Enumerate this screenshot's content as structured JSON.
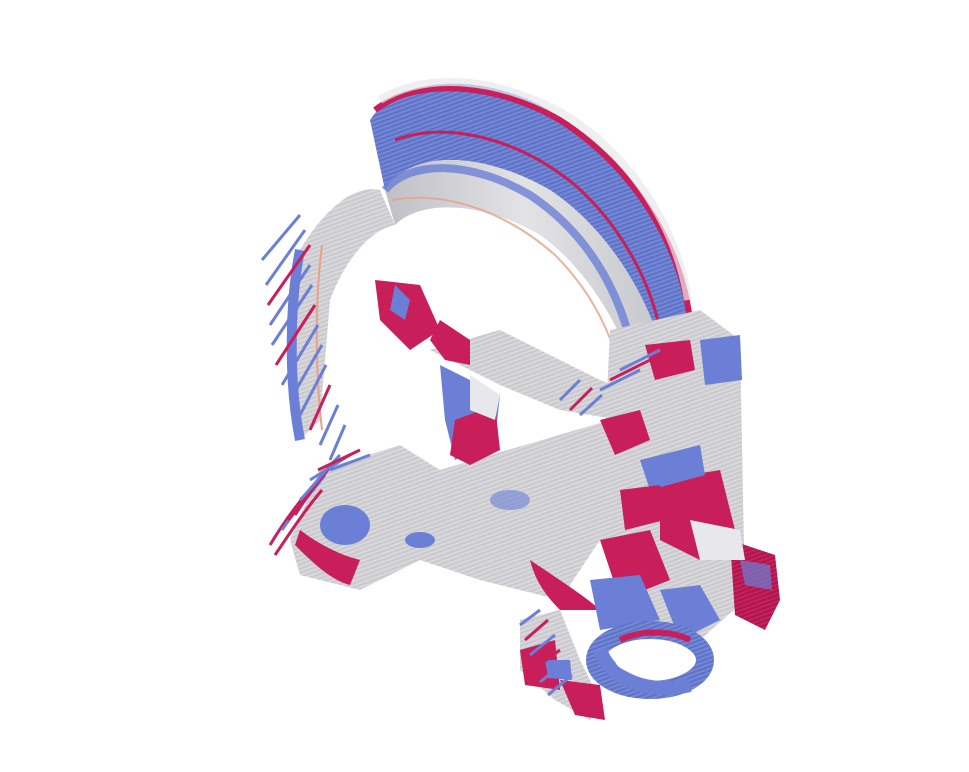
{
  "scene": {
    "background": "#ffffff",
    "colormap": {
      "low": "#6b7fd6",
      "mid": "#dcdcdc",
      "high": "#c81e5a",
      "warm": "#e9a08a"
    },
    "description_labels": []
  }
}
